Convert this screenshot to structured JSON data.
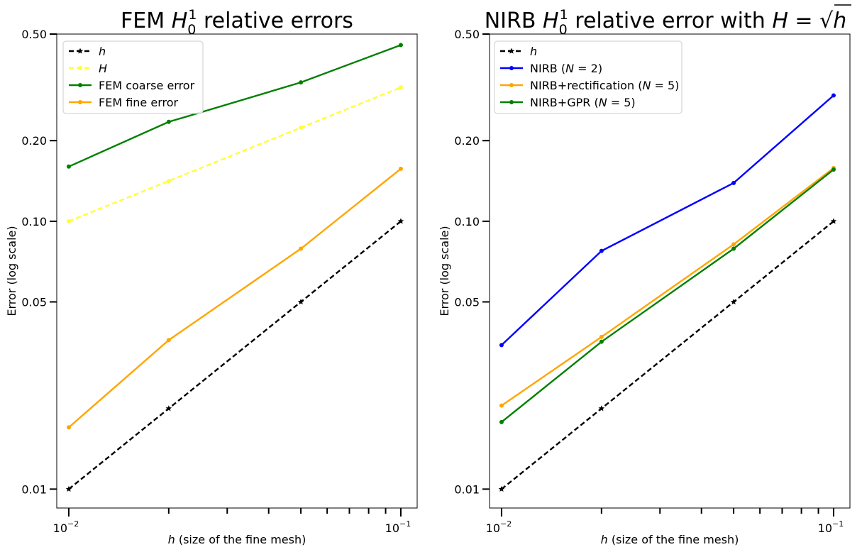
{
  "chart_data": [
    {
      "type": "line",
      "title": "FEM $H_0^1$ relative errors",
      "title_parts": [
        "FEM ",
        "H",
        "0",
        "1",
        " relative errors"
      ],
      "xlabel": "h (size of the fine mesh)",
      "xlabel_parts": [
        "h",
        " (size of the fine mesh)"
      ],
      "ylabel": "Error (log scale)",
      "xscale": "log",
      "yscale": "log",
      "xlim": [
        0.0092,
        0.112
      ],
      "ylim": [
        0.0085,
        0.5
      ],
      "xticks": [
        0.01,
        0.1
      ],
      "xtick_labels": [
        {
          "base": "10",
          "exp": "−2"
        },
        {
          "base": "10",
          "exp": "−1"
        }
      ],
      "yticks": [
        0.01,
        0.05,
        0.1,
        0.2,
        0.5
      ],
      "ytick_labels": [
        "0.01",
        "0.05",
        "0.10",
        "0.20",
        "0.50"
      ],
      "grid": false,
      "legend_position": "top-left",
      "series": [
        {
          "name": "h",
          "color": "#000000",
          "dash": "dashed",
          "marker": "star",
          "x": [
            0.01,
            0.02,
            0.05,
            0.1
          ],
          "y": [
            0.01,
            0.02,
            0.05,
            0.1
          ]
        },
        {
          "name": "H",
          "color": "#ffff33",
          "dash": "dashed",
          "marker": "dot",
          "x": [
            0.01,
            0.02,
            0.05,
            0.1
          ],
          "y": [
            0.1,
            0.1414,
            0.2236,
            0.3162
          ]
        },
        {
          "name": "FEM coarse error",
          "color": "#008000",
          "dash": "solid",
          "marker": "dot",
          "x": [
            0.01,
            0.02,
            0.05,
            0.1
          ],
          "y": [
            0.16,
            0.235,
            0.33,
            0.455
          ]
        },
        {
          "name": "FEM fine error",
          "color": "#ffa500",
          "dash": "solid",
          "marker": "dot",
          "x": [
            0.01,
            0.02,
            0.05,
            0.1
          ],
          "y": [
            0.017,
            0.036,
            0.079,
            0.157
          ]
        }
      ]
    },
    {
      "type": "line",
      "title": "NIRB $H_0^1$ relative error with $H=\\sqrt{h}$",
      "title_parts": [
        "NIRB ",
        "H",
        "0",
        "1",
        " relative error with ",
        "H",
        " = ",
        "√",
        "h"
      ],
      "xlabel": "h (size of the fine mesh)",
      "xlabel_parts": [
        "h",
        " (size of the fine mesh)"
      ],
      "ylabel": "Error (log scale)",
      "xscale": "log",
      "yscale": "log",
      "xlim": [
        0.0092,
        0.112
      ],
      "ylim": [
        0.0085,
        0.5
      ],
      "xticks": [
        0.01,
        0.1
      ],
      "xtick_labels": [
        {
          "base": "10",
          "exp": "−2"
        },
        {
          "base": "10",
          "exp": "−1"
        }
      ],
      "yticks": [
        0.01,
        0.05,
        0.1,
        0.2,
        0.5
      ],
      "ytick_labels": [
        "0.01",
        "0.05",
        "0.10",
        "0.20",
        "0.50"
      ],
      "grid": false,
      "legend_position": "top-left",
      "series": [
        {
          "name": "h",
          "color": "#000000",
          "dash": "dashed",
          "marker": "star",
          "x": [
            0.01,
            0.02,
            0.05,
            0.1
          ],
          "y": [
            0.01,
            0.02,
            0.05,
            0.1
          ]
        },
        {
          "name": "NIRB (N=2)",
          "color": "#0000ff",
          "dash": "solid",
          "marker": "dot",
          "x": [
            0.01,
            0.02,
            0.05,
            0.1
          ],
          "y": [
            0.0345,
            0.0775,
            0.139,
            0.295
          ]
        },
        {
          "name": "NIRB+rectification (N=5)",
          "color": "#ffa500",
          "dash": "solid",
          "marker": "dot",
          "x": [
            0.01,
            0.02,
            0.05,
            0.1
          ],
          "y": [
            0.0205,
            0.037,
            0.082,
            0.158
          ]
        },
        {
          "name": "NIRB+GPR (N=5)",
          "color": "#008000",
          "dash": "solid",
          "marker": "dot",
          "x": [
            0.01,
            0.02,
            0.05,
            0.1
          ],
          "y": [
            0.0178,
            0.0355,
            0.079,
            0.156
          ]
        }
      ]
    }
  ]
}
